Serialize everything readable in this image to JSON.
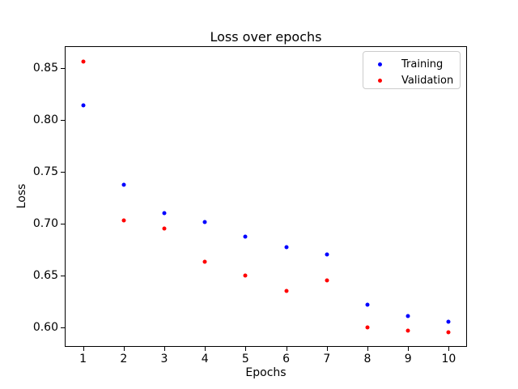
{
  "figure": {
    "title": "Loss over epochs",
    "xlabel": "Epochs",
    "ylabel": "Loss"
  },
  "chart_data": {
    "type": "scatter",
    "title": "Loss over epochs",
    "xlabel": "Epochs",
    "ylabel": "Loss",
    "x": [
      1,
      2,
      3,
      4,
      5,
      6,
      7,
      8,
      9,
      10
    ],
    "series": [
      {
        "name": "Training",
        "color": "#0000ff",
        "marker": "dot",
        "values": [
          0.814,
          0.737,
          0.71,
          0.701,
          0.687,
          0.677,
          0.67,
          0.622,
          0.611,
          0.605
        ]
      },
      {
        "name": "Validation",
        "color": "#ff0000",
        "marker": "dot",
        "values": [
          0.856,
          0.703,
          0.695,
          0.663,
          0.65,
          0.635,
          0.645,
          0.6,
          0.597,
          0.595
        ]
      }
    ],
    "xlim": [
      0.55,
      10.45
    ],
    "ylim": [
      0.581,
      0.871
    ],
    "x_ticks": [
      1,
      2,
      3,
      4,
      5,
      6,
      7,
      8,
      9,
      10
    ],
    "x_tick_labels": [
      "1",
      "2",
      "3",
      "4",
      "5",
      "6",
      "7",
      "8",
      "9",
      "10"
    ],
    "y_ticks": [
      0.6,
      0.65,
      0.7,
      0.75,
      0.8,
      0.85
    ],
    "y_tick_labels": [
      "0.60",
      "0.65",
      "0.70",
      "0.75",
      "0.80",
      "0.85"
    ],
    "grid": false,
    "legend": {
      "position": "upper-right",
      "entries": [
        "Training",
        "Validation"
      ],
      "border_color": "#cccccc",
      "background": "#ffffff"
    }
  }
}
